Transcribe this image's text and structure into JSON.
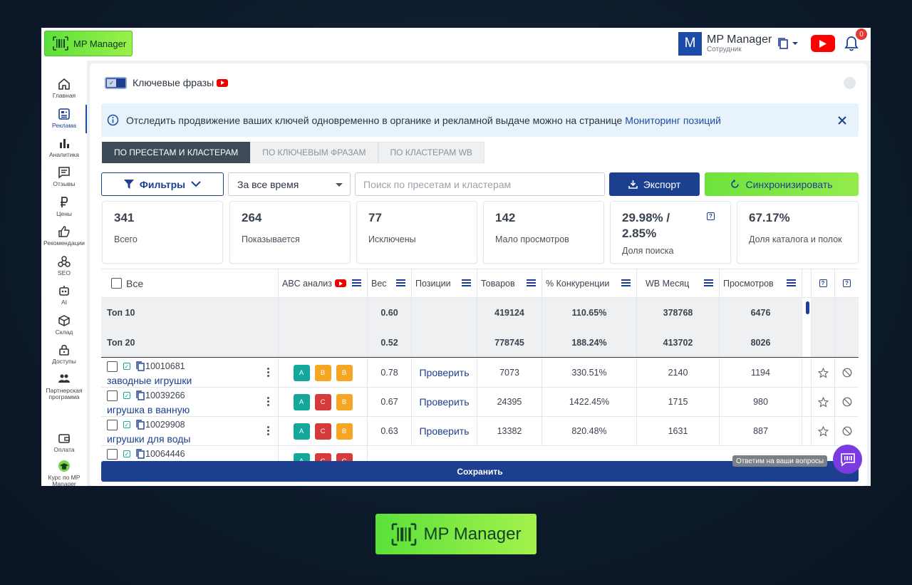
{
  "app": {
    "logo_label": "MP Manager",
    "bottom_logo_label": "MP Manager"
  },
  "user": {
    "avatar_letter": "M",
    "name": "MP Manager",
    "role": "Сотрудник",
    "notifications_count": "0"
  },
  "sidebar": {
    "items": [
      {
        "label": "Главная",
        "icon": "home-icon"
      },
      {
        "label": "Реклама",
        "icon": "ads-icon",
        "active": true
      },
      {
        "label": "Аналитика",
        "icon": "chart-icon"
      },
      {
        "label": "Отзывы",
        "icon": "reviews-icon"
      },
      {
        "label": "Цены",
        "icon": "ruble-icon"
      },
      {
        "label": "Рекомендации",
        "icon": "thumb-up-icon"
      },
      {
        "label": "SEO",
        "icon": "seo-icon"
      },
      {
        "label": "AI",
        "icon": "robot-icon"
      },
      {
        "label": "Склад",
        "icon": "box-icon"
      },
      {
        "label": "Доступы",
        "icon": "lock-icon"
      },
      {
        "label": "Партнерская программа",
        "icon": "partners-icon"
      },
      {
        "label": "Оплата",
        "icon": "wallet-icon"
      },
      {
        "label": "Курс по MP Manager",
        "icon": "graduation-icon"
      }
    ]
  },
  "header": {
    "title": "Ключевые фразы"
  },
  "info": {
    "text": "Отследить продвижение ваших ключей одновременно в органике и рекламной выдаче можно на странице",
    "link": "Мониторинг позиций"
  },
  "tabs": [
    {
      "label": "ПО ПРЕСЕТАМ И КЛАСТЕРАМ",
      "active": true
    },
    {
      "label": "ПО КЛЮЧЕВЫМ ФРАЗАМ",
      "active": false
    },
    {
      "label": "ПО КЛАСТЕРАМ WB",
      "active": false
    }
  ],
  "toolbar": {
    "filters_label": "Фильтры",
    "period_value": "За все время",
    "search_placeholder": "Поиск по пресетам и кластерам",
    "export_label": "Экспорт",
    "sync_label": "Синхронизировать"
  },
  "stats": [
    {
      "value": "341",
      "label": "Всего"
    },
    {
      "value": "264",
      "label": "Показывается"
    },
    {
      "value": "77",
      "label": "Исключены"
    },
    {
      "value": "142",
      "label": "Мало просмотров"
    },
    {
      "value": "29.98% / 2.85%",
      "label": "Доля поиска",
      "help": "?"
    },
    {
      "value": "67.17%",
      "label": "Доля каталога и полок"
    }
  ],
  "table": {
    "headers": {
      "all": "Все",
      "abc": "ABC анализ",
      "weight": "Вес",
      "positions": "Позиции",
      "goods": "Товаров",
      "competition": "% Конкуренции",
      "wb_month": "WB Месяц",
      "views": "Просмотров",
      "help1": "?",
      "help2": "?"
    },
    "summary": [
      {
        "label": "Топ 10",
        "weight": "0.60",
        "goods": "419124",
        "competition": "110.65%",
        "wb_month": "378768",
        "views": "6476"
      },
      {
        "label": "Топ 20",
        "weight": "0.52",
        "goods": "778745",
        "competition": "188.24%",
        "wb_month": "413702",
        "views": "8026"
      }
    ],
    "rows": [
      {
        "id": "10010681",
        "keyword": "заводные игрушки",
        "abc": [
          "A",
          "B",
          "B"
        ],
        "weight": "0.78",
        "check": "Проверить",
        "goods": "7073",
        "competition": "330.51%",
        "wb_month": "2140",
        "views": "1194"
      },
      {
        "id": "10039266",
        "keyword": "игрушка в ванную",
        "abc": [
          "A",
          "C",
          "B"
        ],
        "weight": "0.67",
        "check": "Проверить",
        "goods": "24395",
        "competition": "1422.45%",
        "wb_month": "1715",
        "views": "980"
      },
      {
        "id": "10029908",
        "keyword": "игрушки для воды",
        "abc": [
          "A",
          "C",
          "B"
        ],
        "weight": "0.63",
        "check": "Проверить",
        "goods": "13382",
        "competition": "820.48%",
        "wb_month": "1631",
        "views": "887"
      },
      {
        "id": "10064446",
        "keyword": "",
        "abc": [
          "A",
          "C",
          "C"
        ],
        "weight": "",
        "check": "",
        "goods": "",
        "competition": "",
        "wb_month": "",
        "views": ""
      }
    ]
  },
  "footer": {
    "save_label": "Сохранить",
    "chat_tooltip": "Ответим на ваши вопросы"
  },
  "colors": {
    "primary": "#1d3f8f",
    "green": "#6ee23c",
    "abc_a": "#14a89c",
    "abc_b": "#f5a623",
    "abc_c": "#d63a3a",
    "chat": "#7a3be0"
  }
}
